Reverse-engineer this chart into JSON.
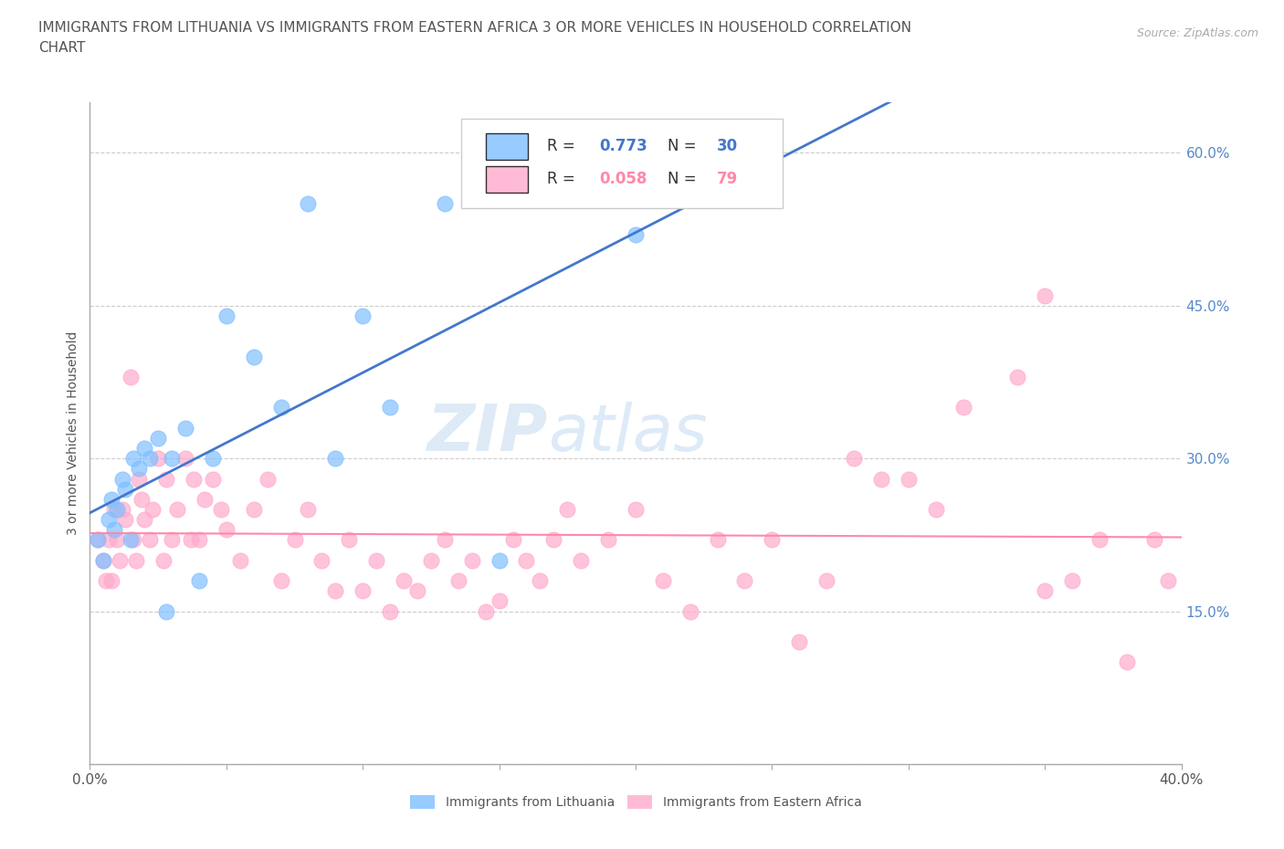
{
  "title_line1": "IMMIGRANTS FROM LITHUANIA VS IMMIGRANTS FROM EASTERN AFRICA 3 OR MORE VEHICLES IN HOUSEHOLD CORRELATION",
  "title_line2": "CHART",
  "source_text": "Source: ZipAtlas.com",
  "ylabel": "3 or more Vehicles in Household",
  "xlim": [
    0.0,
    0.4
  ],
  "ylim": [
    0.0,
    0.65
  ],
  "xticks": [
    0.0,
    0.05,
    0.1,
    0.15,
    0.2,
    0.25,
    0.3,
    0.35,
    0.4
  ],
  "xticklabels": [
    "0.0%",
    "",
    "",
    "",
    "",
    "",
    "",
    "",
    "40.0%"
  ],
  "yticks": [
    0.0,
    0.15,
    0.3,
    0.45,
    0.6
  ],
  "yticklabels": [
    "",
    "15.0%",
    "30.0%",
    "45.0%",
    "60.0%"
  ],
  "grid_color": "#cccccc",
  "background_color": "#ffffff",
  "lithuania_color": "#7fbfff",
  "eastern_africa_color": "#ffaacc",
  "lithuania_line_color": "#4477cc",
  "eastern_africa_line_color": "#ff88aa",
  "ytick_color": "#5588cc",
  "R_lithuania": 0.773,
  "N_lithuania": 30,
  "R_eastern_africa": 0.058,
  "N_eastern_africa": 79,
  "legend_label_1": "Immigrants from Lithuania",
  "legend_label_2": "Immigrants from Eastern Africa",
  "watermark_zip": "ZIP",
  "watermark_atlas": "atlas",
  "lithuania_x": [
    0.003,
    0.005,
    0.007,
    0.008,
    0.009,
    0.01,
    0.012,
    0.013,
    0.015,
    0.016,
    0.018,
    0.02,
    0.022,
    0.025,
    0.028,
    0.03,
    0.035,
    0.04,
    0.045,
    0.05,
    0.06,
    0.07,
    0.08,
    0.09,
    0.1,
    0.11,
    0.13,
    0.15,
    0.2,
    0.25
  ],
  "lithuania_y": [
    0.22,
    0.2,
    0.24,
    0.26,
    0.23,
    0.25,
    0.28,
    0.27,
    0.22,
    0.3,
    0.29,
    0.31,
    0.3,
    0.32,
    0.15,
    0.3,
    0.33,
    0.18,
    0.3,
    0.44,
    0.4,
    0.35,
    0.55,
    0.3,
    0.44,
    0.35,
    0.55,
    0.2,
    0.52,
    0.62
  ],
  "eastern_africa_x": [
    0.003,
    0.005,
    0.006,
    0.007,
    0.008,
    0.009,
    0.01,
    0.011,
    0.012,
    0.013,
    0.015,
    0.016,
    0.017,
    0.018,
    0.019,
    0.02,
    0.022,
    0.023,
    0.025,
    0.027,
    0.028,
    0.03,
    0.032,
    0.035,
    0.037,
    0.038,
    0.04,
    0.042,
    0.045,
    0.048,
    0.05,
    0.055,
    0.06,
    0.065,
    0.07,
    0.075,
    0.08,
    0.085,
    0.09,
    0.095,
    0.1,
    0.105,
    0.11,
    0.115,
    0.12,
    0.125,
    0.13,
    0.135,
    0.14,
    0.145,
    0.15,
    0.155,
    0.16,
    0.165,
    0.17,
    0.175,
    0.18,
    0.19,
    0.2,
    0.21,
    0.22,
    0.23,
    0.24,
    0.25,
    0.26,
    0.27,
    0.28,
    0.29,
    0.3,
    0.31,
    0.32,
    0.34,
    0.35,
    0.36,
    0.37,
    0.38,
    0.39,
    0.395,
    0.35
  ],
  "eastern_africa_y": [
    0.22,
    0.2,
    0.18,
    0.22,
    0.18,
    0.25,
    0.22,
    0.2,
    0.25,
    0.24,
    0.38,
    0.22,
    0.2,
    0.28,
    0.26,
    0.24,
    0.22,
    0.25,
    0.3,
    0.2,
    0.28,
    0.22,
    0.25,
    0.3,
    0.22,
    0.28,
    0.22,
    0.26,
    0.28,
    0.25,
    0.23,
    0.2,
    0.25,
    0.28,
    0.18,
    0.22,
    0.25,
    0.2,
    0.17,
    0.22,
    0.17,
    0.2,
    0.15,
    0.18,
    0.17,
    0.2,
    0.22,
    0.18,
    0.2,
    0.15,
    0.16,
    0.22,
    0.2,
    0.18,
    0.22,
    0.25,
    0.2,
    0.22,
    0.25,
    0.18,
    0.15,
    0.22,
    0.18,
    0.22,
    0.12,
    0.18,
    0.3,
    0.28,
    0.28,
    0.25,
    0.35,
    0.38,
    0.17,
    0.18,
    0.22,
    0.1,
    0.22,
    0.18,
    0.46
  ]
}
